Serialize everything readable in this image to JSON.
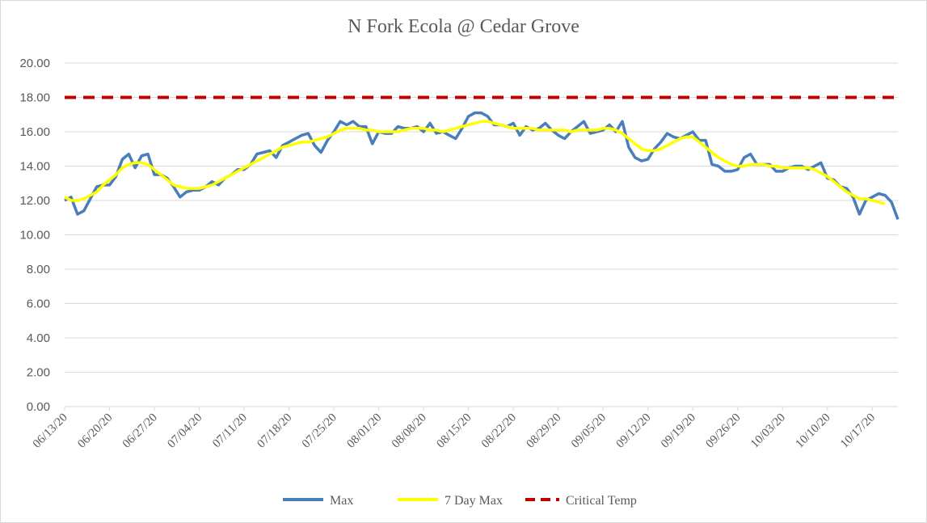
{
  "chart_data": {
    "type": "line",
    "title": "N Fork Ecola @ Cedar Grove",
    "xlabel": "",
    "ylabel": "",
    "ylim": [
      0,
      20
    ],
    "y_ticks": [
      "0.00",
      "2.00",
      "4.00",
      "6.00",
      "8.00",
      "10.00",
      "12.00",
      "14.00",
      "16.00",
      "18.00",
      "20.00"
    ],
    "x_start": "2020-06-13",
    "x_end": "2020-10-21",
    "x_tick_labels": [
      "06/13/20",
      "06/20/20",
      "06/27/20",
      "07/04/20",
      "07/11/20",
      "07/18/20",
      "07/25/20",
      "08/01/20",
      "08/08/20",
      "08/15/20",
      "08/22/20",
      "08/29/20",
      "09/05/20",
      "09/12/20",
      "09/19/20",
      "09/26/20",
      "10/03/20",
      "10/10/20",
      "10/17/20"
    ],
    "grid": "horizontal",
    "legend_position": "bottom",
    "series": [
      {
        "name": "Max",
        "color": "#4a7ebb",
        "points": [
          [
            "2020-06-13",
            12.0
          ],
          [
            "2020-06-14",
            12.2
          ],
          [
            "2020-06-15",
            11.2
          ],
          [
            "2020-06-16",
            11.4
          ],
          [
            "2020-06-17",
            12.1
          ],
          [
            "2020-06-18",
            12.8
          ],
          [
            "2020-06-19",
            12.9
          ],
          [
            "2020-06-20",
            12.9
          ],
          [
            "2020-06-21",
            13.4
          ],
          [
            "2020-06-22",
            14.4
          ],
          [
            "2020-06-23",
            14.7
          ],
          [
            "2020-06-24",
            13.9
          ],
          [
            "2020-06-25",
            14.6
          ],
          [
            "2020-06-26",
            14.7
          ],
          [
            "2020-06-27",
            13.5
          ],
          [
            "2020-06-28",
            13.5
          ],
          [
            "2020-06-29",
            13.3
          ],
          [
            "2020-06-30",
            12.8
          ],
          [
            "2020-07-01",
            12.2
          ],
          [
            "2020-07-02",
            12.5
          ],
          [
            "2020-07-03",
            12.6
          ],
          [
            "2020-07-04",
            12.6
          ],
          [
            "2020-07-05",
            12.8
          ],
          [
            "2020-07-06",
            13.1
          ],
          [
            "2020-07-07",
            12.9
          ],
          [
            "2020-07-08",
            13.3
          ],
          [
            "2020-07-09",
            13.5
          ],
          [
            "2020-07-10",
            13.8
          ],
          [
            "2020-07-11",
            13.8
          ],
          [
            "2020-07-12",
            14.1
          ],
          [
            "2020-07-13",
            14.7
          ],
          [
            "2020-07-14",
            14.8
          ],
          [
            "2020-07-15",
            14.9
          ],
          [
            "2020-07-16",
            14.5
          ],
          [
            "2020-07-17",
            15.2
          ],
          [
            "2020-07-18",
            15.4
          ],
          [
            "2020-07-19",
            15.6
          ],
          [
            "2020-07-20",
            15.8
          ],
          [
            "2020-07-21",
            15.9
          ],
          [
            "2020-07-22",
            15.2
          ],
          [
            "2020-07-23",
            14.8
          ],
          [
            "2020-07-24",
            15.5
          ],
          [
            "2020-07-25",
            16.0
          ],
          [
            "2020-07-26",
            16.6
          ],
          [
            "2020-07-27",
            16.4
          ],
          [
            "2020-07-28",
            16.6
          ],
          [
            "2020-07-29",
            16.3
          ],
          [
            "2020-07-30",
            16.3
          ],
          [
            "2020-07-31",
            15.3
          ],
          [
            "2020-08-01",
            16.0
          ],
          [
            "2020-08-02",
            15.9
          ],
          [
            "2020-08-03",
            15.9
          ],
          [
            "2020-08-04",
            16.3
          ],
          [
            "2020-08-05",
            16.2
          ],
          [
            "2020-08-06",
            16.2
          ],
          [
            "2020-08-07",
            16.3
          ],
          [
            "2020-08-08",
            16.0
          ],
          [
            "2020-08-09",
            16.5
          ],
          [
            "2020-08-10",
            15.9
          ],
          [
            "2020-08-11",
            16.0
          ],
          [
            "2020-08-12",
            15.8
          ],
          [
            "2020-08-13",
            15.6
          ],
          [
            "2020-08-14",
            16.2
          ],
          [
            "2020-08-15",
            16.9
          ],
          [
            "2020-08-16",
            17.1
          ],
          [
            "2020-08-17",
            17.1
          ],
          [
            "2020-08-18",
            16.9
          ],
          [
            "2020-08-19",
            16.4
          ],
          [
            "2020-08-20",
            16.4
          ],
          [
            "2020-08-21",
            16.3
          ],
          [
            "2020-08-22",
            16.5
          ],
          [
            "2020-08-23",
            15.8
          ],
          [
            "2020-08-24",
            16.3
          ],
          [
            "2020-08-25",
            16.1
          ],
          [
            "2020-08-26",
            16.2
          ],
          [
            "2020-08-27",
            16.5
          ],
          [
            "2020-08-28",
            16.1
          ],
          [
            "2020-08-29",
            15.8
          ],
          [
            "2020-08-30",
            15.6
          ],
          [
            "2020-08-31",
            16.0
          ],
          [
            "2020-09-01",
            16.3
          ],
          [
            "2020-09-02",
            16.6
          ],
          [
            "2020-09-03",
            15.9
          ],
          [
            "2020-09-04",
            16.0
          ],
          [
            "2020-09-05",
            16.1
          ],
          [
            "2020-09-06",
            16.4
          ],
          [
            "2020-09-07",
            16.0
          ],
          [
            "2020-09-08",
            16.6
          ],
          [
            "2020-09-09",
            15.1
          ],
          [
            "2020-09-10",
            14.5
          ],
          [
            "2020-09-11",
            14.3
          ],
          [
            "2020-09-12",
            14.4
          ],
          [
            "2020-09-13",
            15.0
          ],
          [
            "2020-09-14",
            15.4
          ],
          [
            "2020-09-15",
            15.9
          ],
          [
            "2020-09-16",
            15.7
          ],
          [
            "2020-09-17",
            15.6
          ],
          [
            "2020-09-18",
            15.8
          ],
          [
            "2020-09-19",
            16.0
          ],
          [
            "2020-09-20",
            15.5
          ],
          [
            "2020-09-21",
            15.5
          ],
          [
            "2020-09-22",
            14.1
          ],
          [
            "2020-09-23",
            14.0
          ],
          [
            "2020-09-24",
            13.7
          ],
          [
            "2020-09-25",
            13.7
          ],
          [
            "2020-09-26",
            13.8
          ],
          [
            "2020-09-27",
            14.5
          ],
          [
            "2020-09-28",
            14.7
          ],
          [
            "2020-09-29",
            14.1
          ],
          [
            "2020-09-30",
            14.1
          ],
          [
            "2020-10-01",
            14.1
          ],
          [
            "2020-10-02",
            13.7
          ],
          [
            "2020-10-03",
            13.7
          ],
          [
            "2020-10-04",
            13.9
          ],
          [
            "2020-10-05",
            14.0
          ],
          [
            "2020-10-06",
            14.0
          ],
          [
            "2020-10-07",
            13.8
          ],
          [
            "2020-10-08",
            14.0
          ],
          [
            "2020-10-09",
            14.2
          ],
          [
            "2020-10-10",
            13.3
          ],
          [
            "2020-10-11",
            13.2
          ],
          [
            "2020-10-12",
            12.8
          ],
          [
            "2020-10-13",
            12.7
          ],
          [
            "2020-10-14",
            12.2
          ],
          [
            "2020-10-15",
            11.2
          ],
          [
            "2020-10-16",
            12.0
          ],
          [
            "2020-10-17",
            12.2
          ],
          [
            "2020-10-18",
            12.4
          ],
          [
            "2020-10-19",
            12.3
          ],
          [
            "2020-10-20",
            11.9
          ],
          [
            "2020-10-21",
            10.9
          ]
        ]
      },
      {
        "name": "7 Day Max",
        "color": "#ffff00",
        "points": [
          [
            "2020-06-13",
            12.2
          ],
          [
            "2020-06-14",
            12.0
          ],
          [
            "2020-06-15",
            12.0
          ],
          [
            "2020-06-16",
            12.1
          ],
          [
            "2020-06-17",
            12.3
          ],
          [
            "2020-06-18",
            12.5
          ],
          [
            "2020-06-19",
            12.9
          ],
          [
            "2020-06-20",
            13.2
          ],
          [
            "2020-06-21",
            13.5
          ],
          [
            "2020-06-22",
            13.9
          ],
          [
            "2020-06-23",
            14.1
          ],
          [
            "2020-06-24",
            14.2
          ],
          [
            "2020-06-25",
            14.2
          ],
          [
            "2020-06-26",
            14.1
          ],
          [
            "2020-06-27",
            13.8
          ],
          [
            "2020-06-28",
            13.5
          ],
          [
            "2020-06-29",
            13.2
          ],
          [
            "2020-06-30",
            12.9
          ],
          [
            "2020-07-01",
            12.8
          ],
          [
            "2020-07-02",
            12.7
          ],
          [
            "2020-07-03",
            12.7
          ],
          [
            "2020-07-04",
            12.7
          ],
          [
            "2020-07-05",
            12.8
          ],
          [
            "2020-07-06",
            12.9
          ],
          [
            "2020-07-07",
            13.1
          ],
          [
            "2020-07-08",
            13.3
          ],
          [
            "2020-07-09",
            13.5
          ],
          [
            "2020-07-10",
            13.7
          ],
          [
            "2020-07-11",
            13.9
          ],
          [
            "2020-07-12",
            14.1
          ],
          [
            "2020-07-13",
            14.3
          ],
          [
            "2020-07-14",
            14.5
          ],
          [
            "2020-07-15",
            14.7
          ],
          [
            "2020-07-16",
            14.9
          ],
          [
            "2020-07-17",
            15.1
          ],
          [
            "2020-07-18",
            15.2
          ],
          [
            "2020-07-19",
            15.3
          ],
          [
            "2020-07-20",
            15.4
          ],
          [
            "2020-07-21",
            15.4
          ],
          [
            "2020-07-22",
            15.5
          ],
          [
            "2020-07-23",
            15.6
          ],
          [
            "2020-07-24",
            15.7
          ],
          [
            "2020-07-25",
            15.9
          ],
          [
            "2020-07-26",
            16.1
          ],
          [
            "2020-07-27",
            16.2
          ],
          [
            "2020-07-28",
            16.2
          ],
          [
            "2020-07-29",
            16.2
          ],
          [
            "2020-07-30",
            16.1
          ],
          [
            "2020-07-31",
            16.1
          ],
          [
            "2020-08-01",
            16.0
          ],
          [
            "2020-08-02",
            16.0
          ],
          [
            "2020-08-03",
            16.0
          ],
          [
            "2020-08-04",
            16.0
          ],
          [
            "2020-08-05",
            16.1
          ],
          [
            "2020-08-06",
            16.2
          ],
          [
            "2020-08-07",
            16.2
          ],
          [
            "2020-08-08",
            16.2
          ],
          [
            "2020-08-09",
            16.1
          ],
          [
            "2020-08-10",
            16.1
          ],
          [
            "2020-08-11",
            16.0
          ],
          [
            "2020-08-12",
            16.1
          ],
          [
            "2020-08-13",
            16.2
          ],
          [
            "2020-08-14",
            16.3
          ],
          [
            "2020-08-15",
            16.4
          ],
          [
            "2020-08-16",
            16.5
          ],
          [
            "2020-08-17",
            16.6
          ],
          [
            "2020-08-18",
            16.6
          ],
          [
            "2020-08-19",
            16.5
          ],
          [
            "2020-08-20",
            16.4
          ],
          [
            "2020-08-21",
            16.3
          ],
          [
            "2020-08-22",
            16.2
          ],
          [
            "2020-08-23",
            16.2
          ],
          [
            "2020-08-24",
            16.2
          ],
          [
            "2020-08-25",
            16.2
          ],
          [
            "2020-08-26",
            16.1
          ],
          [
            "2020-08-27",
            16.1
          ],
          [
            "2020-08-28",
            16.1
          ],
          [
            "2020-08-29",
            16.1
          ],
          [
            "2020-08-30",
            16.1
          ],
          [
            "2020-08-31",
            16.0
          ],
          [
            "2020-09-01",
            16.1
          ],
          [
            "2020-09-02",
            16.1
          ],
          [
            "2020-09-03",
            16.1
          ],
          [
            "2020-09-04",
            16.1
          ],
          [
            "2020-09-05",
            16.2
          ],
          [
            "2020-09-06",
            16.2
          ],
          [
            "2020-09-07",
            16.1
          ],
          [
            "2020-09-08",
            15.9
          ],
          [
            "2020-09-09",
            15.6
          ],
          [
            "2020-09-10",
            15.3
          ],
          [
            "2020-09-11",
            15.0
          ],
          [
            "2020-09-12",
            14.9
          ],
          [
            "2020-09-13",
            14.9
          ],
          [
            "2020-09-14",
            15.0
          ],
          [
            "2020-09-15",
            15.2
          ],
          [
            "2020-09-16",
            15.4
          ],
          [
            "2020-09-17",
            15.6
          ],
          [
            "2020-09-18",
            15.7
          ],
          [
            "2020-09-19",
            15.7
          ],
          [
            "2020-09-20",
            15.4
          ],
          [
            "2020-09-21",
            15.1
          ],
          [
            "2020-09-22",
            14.8
          ],
          [
            "2020-09-23",
            14.5
          ],
          [
            "2020-09-24",
            14.3
          ],
          [
            "2020-09-25",
            14.1
          ],
          [
            "2020-09-26",
            14.0
          ],
          [
            "2020-09-27",
            14.0
          ],
          [
            "2020-09-28",
            14.1
          ],
          [
            "2020-09-29",
            14.1
          ],
          [
            "2020-09-30",
            14.1
          ],
          [
            "2020-10-01",
            14.0
          ],
          [
            "2020-10-02",
            14.0
          ],
          [
            "2020-10-03",
            13.9
          ],
          [
            "2020-10-04",
            13.9
          ],
          [
            "2020-10-05",
            13.9
          ],
          [
            "2020-10-06",
            13.9
          ],
          [
            "2020-10-07",
            13.9
          ],
          [
            "2020-10-08",
            13.8
          ],
          [
            "2020-10-09",
            13.6
          ],
          [
            "2020-10-10",
            13.4
          ],
          [
            "2020-10-11",
            13.1
          ],
          [
            "2020-10-12",
            12.8
          ],
          [
            "2020-10-13",
            12.5
          ],
          [
            "2020-10-14",
            12.3
          ],
          [
            "2020-10-15",
            12.1
          ],
          [
            "2020-10-16",
            12.1
          ],
          [
            "2020-10-17",
            12.0
          ],
          [
            "2020-10-18",
            11.9
          ],
          [
            "2020-10-19",
            11.8
          ]
        ]
      },
      {
        "name": "Critical Temp",
        "color": "#c00000",
        "style": "dashed",
        "points": [
          [
            "2020-06-13",
            18.0
          ],
          [
            "2020-10-21",
            18.0
          ]
        ]
      }
    ]
  }
}
